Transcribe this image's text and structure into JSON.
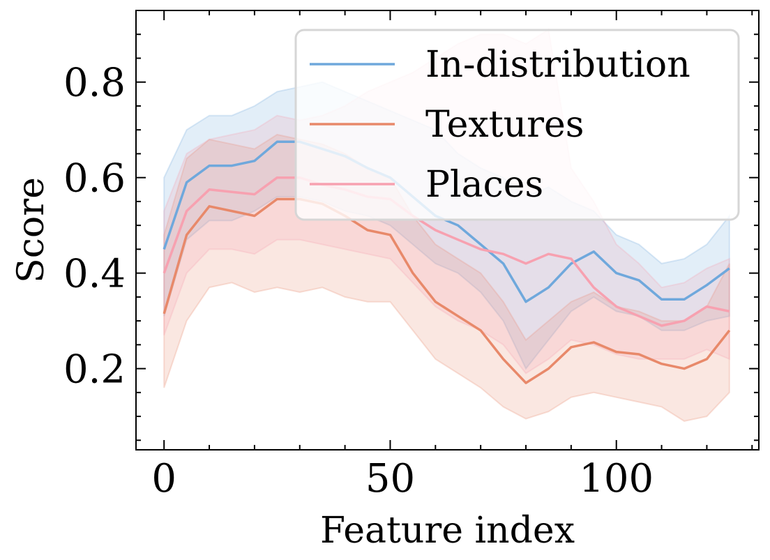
{
  "chart_data": {
    "type": "line",
    "xlabel": "Feature index",
    "ylabel": "Score",
    "xlim": [
      -6.2,
      131.5
    ],
    "ylim": [
      0.03,
      0.95
    ],
    "xticks": [
      0,
      50,
      100
    ],
    "xtick_labels": [
      "0",
      "50",
      "100"
    ],
    "yticks": [
      0.2,
      0.4,
      0.6,
      0.8
    ],
    "ytick_labels": [
      "0.2",
      "0.4",
      "0.6",
      "0.8"
    ],
    "legend_position": "top-right",
    "series": [
      {
        "name": "In-distribution",
        "color": "#6fa8dc",
        "x": [
          0,
          5,
          10,
          15,
          20,
          25,
          30,
          35,
          40,
          45,
          50,
          55,
          60,
          65,
          70,
          75,
          80,
          85,
          90,
          95,
          100,
          105,
          110,
          115,
          120,
          125
        ],
        "y": [
          0.45,
          0.59,
          0.625,
          0.625,
          0.635,
          0.675,
          0.675,
          0.66,
          0.645,
          0.62,
          0.6,
          0.56,
          0.52,
          0.5,
          0.46,
          0.42,
          0.34,
          0.37,
          0.42,
          0.445,
          0.4,
          0.385,
          0.345,
          0.345,
          0.375,
          0.41
        ],
        "lower": [
          0.31,
          0.47,
          0.51,
          0.51,
          0.53,
          0.56,
          0.56,
          0.55,
          0.53,
          0.52,
          0.5,
          0.46,
          0.42,
          0.4,
          0.36,
          0.3,
          0.2,
          0.26,
          0.32,
          0.35,
          0.32,
          0.31,
          0.28,
          0.28,
          0.3,
          0.31
        ],
        "upper": [
          0.6,
          0.7,
          0.73,
          0.73,
          0.75,
          0.78,
          0.79,
          0.8,
          0.78,
          0.76,
          0.74,
          0.72,
          0.7,
          0.65,
          0.62,
          0.6,
          0.56,
          0.58,
          0.55,
          0.53,
          0.48,
          0.46,
          0.42,
          0.43,
          0.46,
          0.52
        ]
      },
      {
        "name": "Textures",
        "color": "#e8896a",
        "x": [
          0,
          5,
          10,
          15,
          20,
          25,
          30,
          35,
          40,
          45,
          50,
          55,
          60,
          65,
          70,
          75,
          80,
          85,
          90,
          95,
          100,
          105,
          110,
          115,
          120,
          125
        ],
        "y": [
          0.315,
          0.48,
          0.54,
          0.53,
          0.52,
          0.555,
          0.555,
          0.545,
          0.52,
          0.49,
          0.48,
          0.4,
          0.34,
          0.31,
          0.28,
          0.22,
          0.17,
          0.2,
          0.245,
          0.255,
          0.235,
          0.23,
          0.21,
          0.2,
          0.22,
          0.28
        ],
        "lower": [
          0.16,
          0.3,
          0.37,
          0.38,
          0.36,
          0.37,
          0.36,
          0.37,
          0.35,
          0.34,
          0.34,
          0.28,
          0.22,
          0.19,
          0.16,
          0.12,
          0.095,
          0.11,
          0.14,
          0.15,
          0.14,
          0.13,
          0.12,
          0.09,
          0.1,
          0.15
        ],
        "upper": [
          0.48,
          0.64,
          0.68,
          0.67,
          0.66,
          0.69,
          0.68,
          0.67,
          0.65,
          0.62,
          0.6,
          0.52,
          0.46,
          0.43,
          0.4,
          0.34,
          0.26,
          0.3,
          0.34,
          0.36,
          0.33,
          0.32,
          0.3,
          0.3,
          0.33,
          0.42
        ]
      },
      {
        "name": "Places",
        "color": "#f7a1b0",
        "x": [
          0,
          5,
          10,
          15,
          20,
          25,
          30,
          35,
          40,
          45,
          50,
          55,
          60,
          65,
          70,
          75,
          80,
          85,
          90,
          95,
          100,
          105,
          110,
          115,
          120,
          125
        ],
        "y": [
          0.4,
          0.53,
          0.575,
          0.57,
          0.565,
          0.6,
          0.6,
          0.585,
          0.575,
          0.56,
          0.555,
          0.52,
          0.49,
          0.47,
          0.45,
          0.44,
          0.42,
          0.44,
          0.43,
          0.37,
          0.33,
          0.31,
          0.29,
          0.3,
          0.33,
          0.32
        ],
        "lower": [
          0.27,
          0.4,
          0.45,
          0.45,
          0.44,
          0.47,
          0.47,
          0.46,
          0.45,
          0.44,
          0.43,
          0.38,
          0.33,
          0.3,
          0.28,
          0.25,
          0.19,
          0.22,
          0.26,
          0.25,
          0.23,
          0.22,
          0.22,
          0.22,
          0.24,
          0.22
        ],
        "upper": [
          0.53,
          0.65,
          0.68,
          0.69,
          0.7,
          0.73,
          0.72,
          0.73,
          0.75,
          0.78,
          0.8,
          0.82,
          0.85,
          0.88,
          0.9,
          0.9,
          0.88,
          0.91,
          0.62,
          0.55,
          0.46,
          0.42,
          0.37,
          0.38,
          0.41,
          0.43
        ]
      }
    ]
  }
}
